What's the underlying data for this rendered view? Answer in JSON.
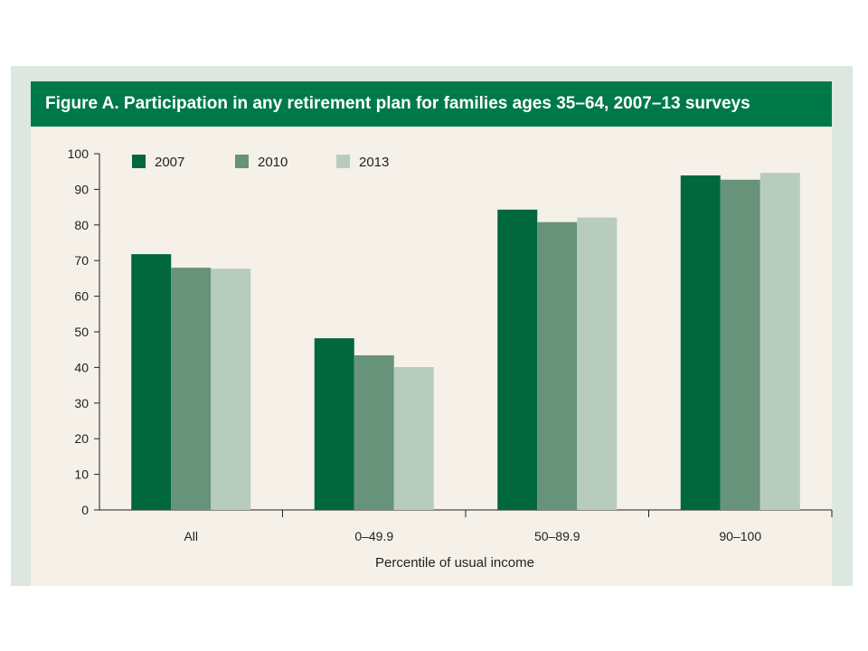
{
  "chart_data": {
    "type": "bar",
    "title": "Figure A. Participation in any retirement plan for families ages 35–64, 2007–13 surveys",
    "xlabel": "Percentile of usual income",
    "ylabel": "",
    "ylim": [
      0,
      100
    ],
    "yticks": [
      "0",
      "10",
      "20",
      "30",
      "40",
      "50",
      "60",
      "70",
      "80",
      "90",
      "100"
    ],
    "categories": [
      "All",
      "0–49.9",
      "50–89.9",
      "90–100"
    ],
    "series": [
      {
        "name": "2007",
        "color": "#00673f",
        "values": [
          71.8,
          48.2,
          84.3,
          93.9
        ]
      },
      {
        "name": "2010",
        "color": "#66937a",
        "values": [
          68.0,
          43.4,
          80.8,
          92.7
        ]
      },
      {
        "name": "2013",
        "color": "#b7cbbf",
        "values": [
          67.7,
          40.1,
          82.1,
          94.6
        ]
      }
    ],
    "legend_position": "top-left",
    "grid": false
  }
}
